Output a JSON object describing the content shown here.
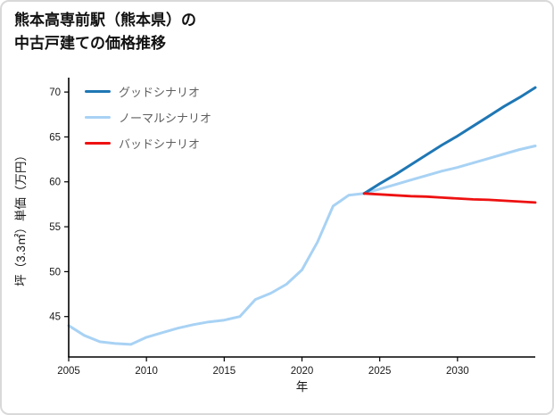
{
  "title": {
    "line1": "熊本高専前駅（熊本県）の",
    "line2": "中古戸建ての価格推移"
  },
  "chart_data": {
    "type": "line",
    "title": "熊本高専前駅（熊本県）の中古戸建ての価格推移",
    "xlabel": "年",
    "ylabel": "坪（3.3㎡）単価（万円）",
    "xlim": [
      2005,
      2035
    ],
    "ylim": [
      40.5,
      71.5
    ],
    "xticks": [
      2005,
      2010,
      2015,
      2020,
      2025,
      2030
    ],
    "yticks": [
      45,
      50,
      55,
      60,
      65,
      70
    ],
    "grid": false,
    "legend_position": "top-left",
    "axis_color": "#000000",
    "series": [
      {
        "name": "グッドシナリオ",
        "color": "#1f77b4",
        "width": 3,
        "x": [
          2024,
          2025,
          2026,
          2027,
          2028,
          2029,
          2030,
          2031,
          2032,
          2033,
          2034,
          2035
        ],
        "y": [
          58.7,
          59.8,
          60.8,
          61.9,
          63.0,
          64.1,
          65.1,
          66.2,
          67.3,
          68.4,
          69.4,
          70.5
        ]
      },
      {
        "name": "ノーマルシナリオ",
        "color": "#a8d2f4",
        "width": 3,
        "x": [
          2005,
          2006,
          2007,
          2008,
          2009,
          2010,
          2011,
          2012,
          2013,
          2014,
          2015,
          2016,
          2017,
          2018,
          2019,
          2020,
          2021,
          2022,
          2023,
          2024,
          2025,
          2026,
          2027,
          2028,
          2029,
          2030,
          2031,
          2032,
          2033,
          2034,
          2035
        ],
        "y": [
          44.0,
          42.9,
          42.2,
          42.0,
          41.9,
          42.7,
          43.2,
          43.7,
          44.1,
          44.4,
          44.6,
          45.0,
          46.9,
          47.6,
          48.6,
          50.2,
          53.3,
          57.3,
          58.5,
          58.7,
          59.2,
          59.7,
          60.2,
          60.7,
          61.2,
          61.6,
          62.1,
          62.6,
          63.1,
          63.6,
          64.0
        ]
      },
      {
        "name": "バッドシナリオ",
        "color": "#ee1111",
        "width": 2.8,
        "x": [
          2024,
          2025,
          2026,
          2027,
          2028,
          2029,
          2030,
          2031,
          2032,
          2033,
          2034,
          2035
        ],
        "y": [
          58.7,
          58.6,
          58.5,
          58.4,
          58.35,
          58.25,
          58.15,
          58.05,
          58.0,
          57.9,
          57.8,
          57.7
        ]
      }
    ]
  }
}
